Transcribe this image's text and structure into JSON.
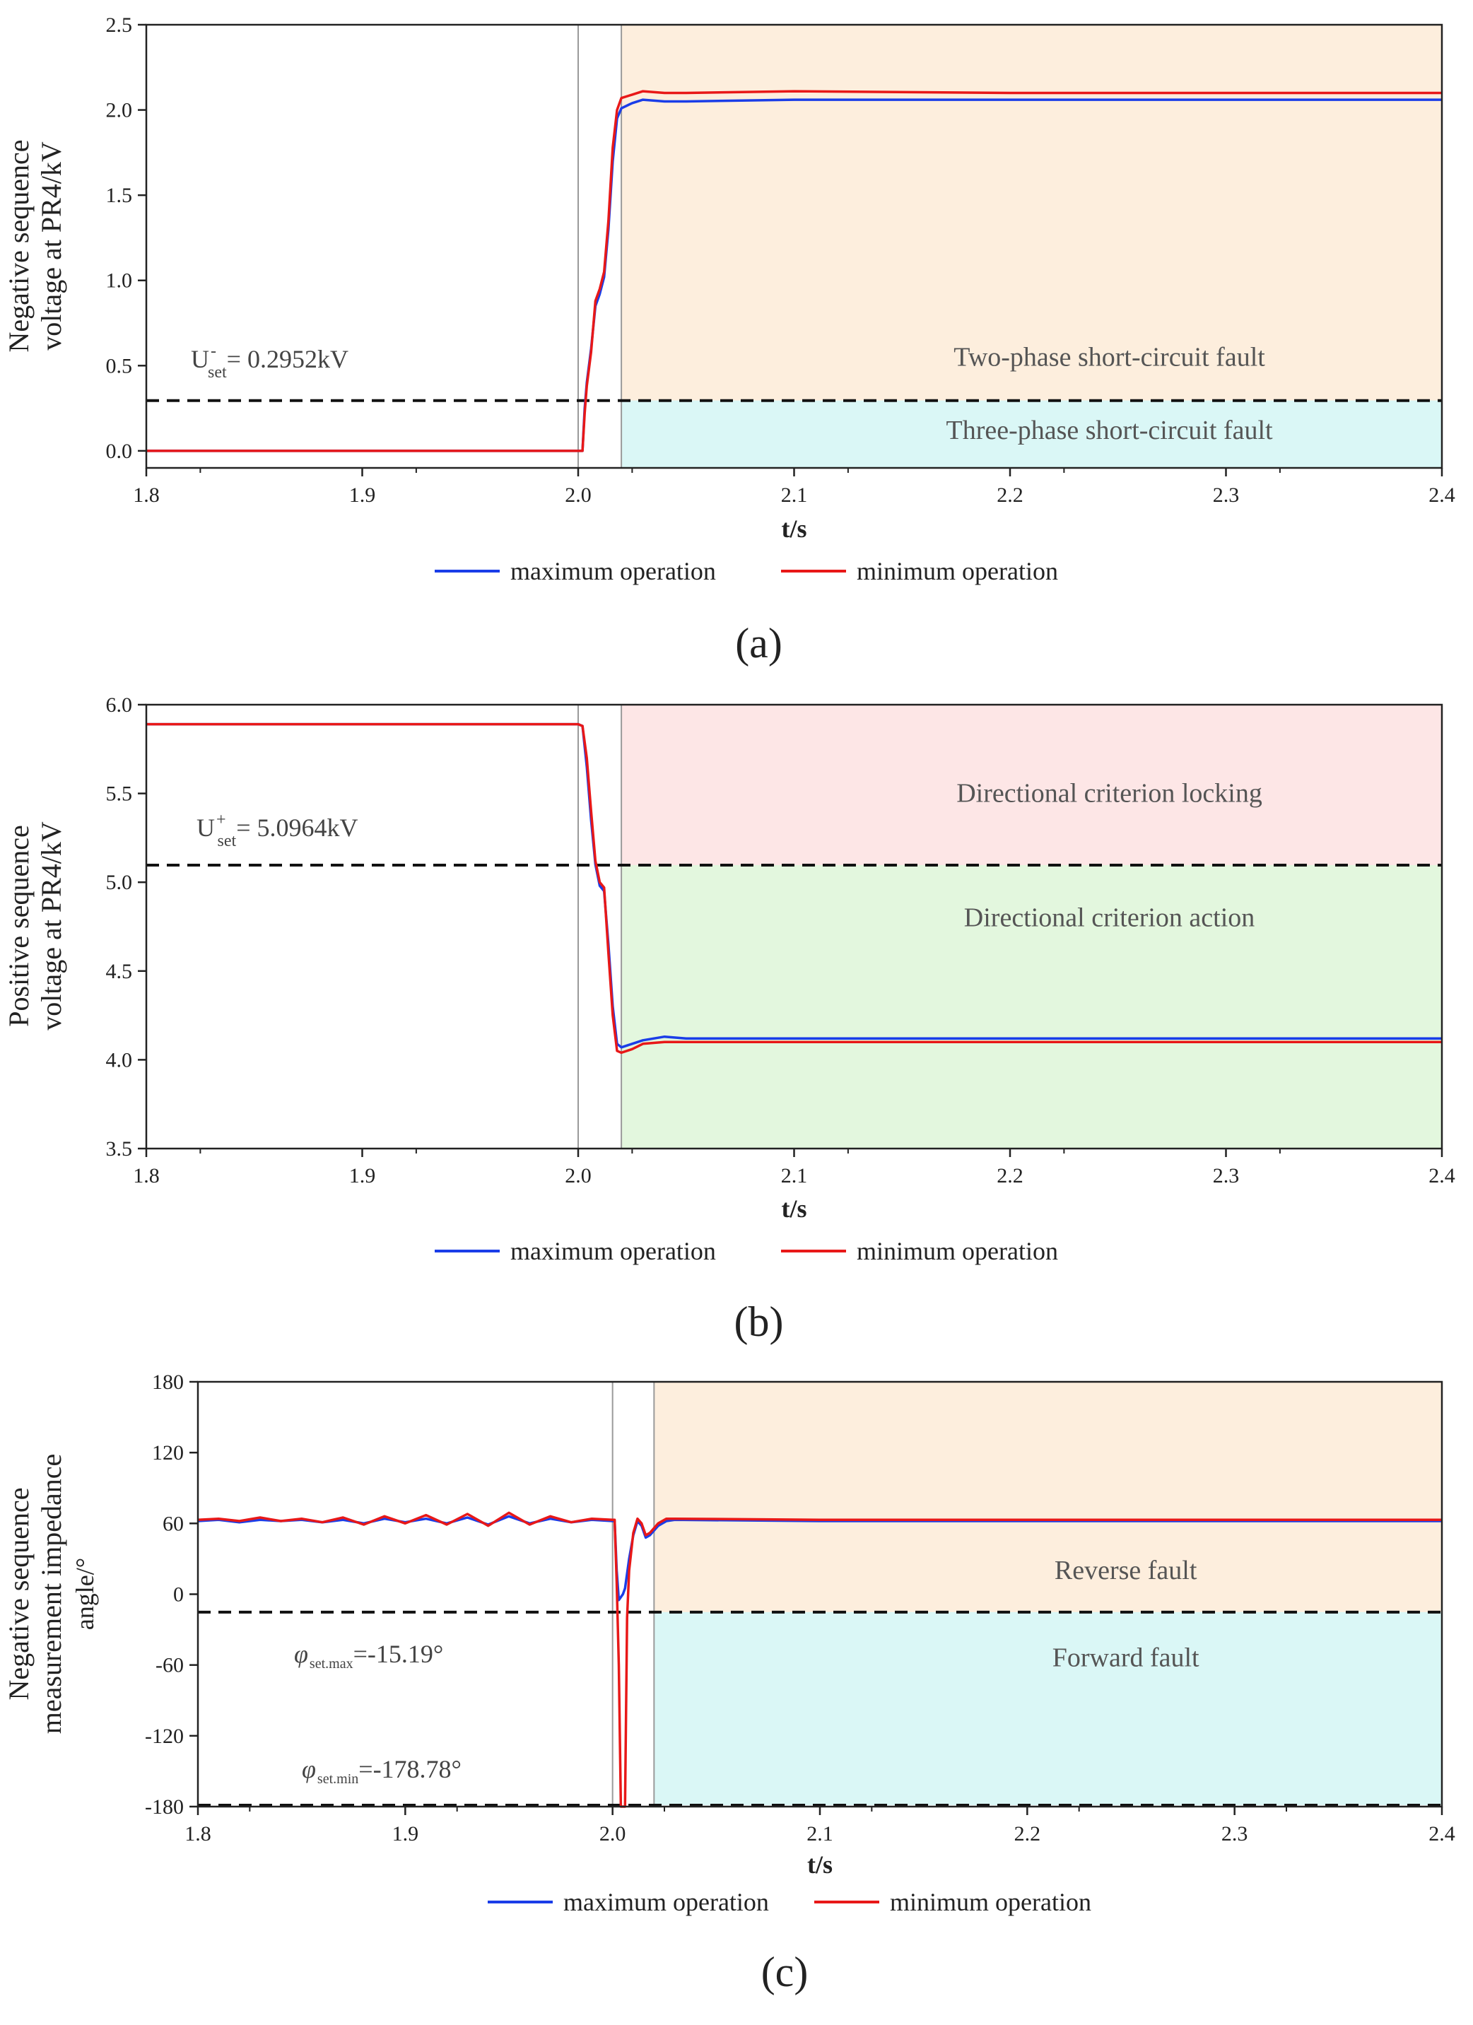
{
  "chart_data": [
    {
      "type": "line",
      "panel_label": "(a)",
      "xlabel": "t/s",
      "ylabel_lines": [
        "Negative sequence",
        "voltage at PR4/kV"
      ],
      "xlim": [
        1.8,
        2.4
      ],
      "ylim": [
        -0.1,
        2.5
      ],
      "xticks": [
        1.8,
        1.9,
        2.0,
        2.1,
        2.2,
        2.3,
        2.4
      ],
      "xtick_labels": [
        "1.8",
        "1.9",
        "2.0",
        "2.1",
        "2.2",
        "2.3",
        "2.4"
      ],
      "yticks": [
        0.0,
        0.5,
        1.0,
        1.5,
        2.0,
        2.5
      ],
      "ytick_labels": [
        "0.0",
        "0.5",
        "1.0",
        "1.5",
        "2.0",
        "2.5"
      ],
      "fault_start": 2.0,
      "shade_start": 2.02,
      "threshold": 0.2952,
      "threshold_label": {
        "main": "U",
        "sup": "-",
        "sub": "set",
        "text": "= 0.2952kV"
      },
      "regions": [
        {
          "label": "Two-phase short-circuit fault",
          "from": 0.2952,
          "to": 2.5,
          "color": "#fdeedd",
          "text_y": 0.55
        },
        {
          "label": "Three-phase short-circuit fault",
          "from": -0.1,
          "to": 0.2952,
          "color": "#daf7f6",
          "text_y": 0.12
        }
      ],
      "legend": [
        "maximum operation",
        "minimum operation"
      ],
      "series": [
        {
          "name": "maximum operation",
          "color": "#1a3de8",
          "points": [
            [
              1.8,
              0.0
            ],
            [
              2.0,
              0.0
            ],
            [
              2.002,
              0.0
            ],
            [
              2.003,
              0.25
            ],
            [
              2.004,
              0.4
            ],
            [
              2.006,
              0.6
            ],
            [
              2.008,
              0.85
            ],
            [
              2.01,
              0.92
            ],
            [
              2.012,
              1.02
            ],
            [
              2.014,
              1.3
            ],
            [
              2.016,
              1.7
            ],
            [
              2.018,
              1.95
            ],
            [
              2.02,
              2.01
            ],
            [
              2.025,
              2.04
            ],
            [
              2.03,
              2.06
            ],
            [
              2.04,
              2.05
            ],
            [
              2.05,
              2.05
            ],
            [
              2.1,
              2.06
            ],
            [
              2.2,
              2.06
            ],
            [
              2.3,
              2.06
            ],
            [
              2.4,
              2.06
            ]
          ]
        },
        {
          "name": "minimum operation",
          "color": "#e81818",
          "points": [
            [
              1.8,
              0.0
            ],
            [
              2.0,
              0.0
            ],
            [
              2.002,
              0.0
            ],
            [
              2.003,
              0.22
            ],
            [
              2.004,
              0.38
            ],
            [
              2.006,
              0.58
            ],
            [
              2.008,
              0.88
            ],
            [
              2.01,
              0.95
            ],
            [
              2.012,
              1.05
            ],
            [
              2.014,
              1.35
            ],
            [
              2.016,
              1.78
            ],
            [
              2.018,
              2.0
            ],
            [
              2.02,
              2.07
            ],
            [
              2.025,
              2.09
            ],
            [
              2.03,
              2.11
            ],
            [
              2.04,
              2.1
            ],
            [
              2.05,
              2.1
            ],
            [
              2.1,
              2.11
            ],
            [
              2.2,
              2.1
            ],
            [
              2.3,
              2.1
            ],
            [
              2.4,
              2.1
            ]
          ]
        }
      ]
    },
    {
      "type": "line",
      "panel_label": "(b)",
      "xlabel": "t/s",
      "ylabel_lines": [
        "Positive sequence",
        "voltage at PR4/kV"
      ],
      "xlim": [
        1.8,
        2.4
      ],
      "ylim": [
        3.5,
        6.0
      ],
      "xticks": [
        1.8,
        1.9,
        2.0,
        2.1,
        2.2,
        2.3,
        2.4
      ],
      "xtick_labels": [
        "1.8",
        "1.9",
        "2.0",
        "2.1",
        "2.2",
        "2.3",
        "2.4"
      ],
      "yticks": [
        3.5,
        4.0,
        4.5,
        5.0,
        5.5,
        6.0
      ],
      "ytick_labels": [
        "3.5",
        "4.0",
        "4.5",
        "5.0",
        "5.5",
        "6.0"
      ],
      "fault_start": 2.0,
      "shade_start": 2.02,
      "threshold": 5.0964,
      "threshold_label": {
        "main": "U",
        "sup": "+",
        "sub": "set",
        "text": "= 5.0964kV"
      },
      "regions": [
        {
          "label": "Directional criterion locking",
          "from": 5.0964,
          "to": 6.0,
          "color": "#fde6e6",
          "text_y": 5.5
        },
        {
          "label": "Directional criterion action",
          "from": 3.5,
          "to": 5.0964,
          "color": "#e3f7de",
          "text_y": 4.8
        }
      ],
      "legend": [
        "maximum operation",
        "minimum operation"
      ],
      "series": [
        {
          "name": "maximum operation",
          "color": "#1a3de8",
          "points": [
            [
              1.8,
              5.89
            ],
            [
              2.0,
              5.89
            ],
            [
              2.002,
              5.88
            ],
            [
              2.004,
              5.65
            ],
            [
              2.006,
              5.35
            ],
            [
              2.008,
              5.1
            ],
            [
              2.01,
              4.98
            ],
            [
              2.012,
              4.95
            ],
            [
              2.014,
              4.65
            ],
            [
              2.016,
              4.3
            ],
            [
              2.018,
              4.09
            ],
            [
              2.02,
              4.07
            ],
            [
              2.025,
              4.09
            ],
            [
              2.03,
              4.11
            ],
            [
              2.04,
              4.13
            ],
            [
              2.05,
              4.12
            ],
            [
              2.1,
              4.12
            ],
            [
              2.2,
              4.12
            ],
            [
              2.3,
              4.12
            ],
            [
              2.4,
              4.12
            ]
          ]
        },
        {
          "name": "minimum operation",
          "color": "#e81818",
          "points": [
            [
              1.8,
              5.89
            ],
            [
              2.0,
              5.89
            ],
            [
              2.002,
              5.88
            ],
            [
              2.004,
              5.7
            ],
            [
              2.006,
              5.4
            ],
            [
              2.008,
              5.12
            ],
            [
              2.01,
              5.0
            ],
            [
              2.012,
              4.97
            ],
            [
              2.014,
              4.6
            ],
            [
              2.016,
              4.25
            ],
            [
              2.018,
              4.05
            ],
            [
              2.02,
              4.04
            ],
            [
              2.025,
              4.06
            ],
            [
              2.03,
              4.09
            ],
            [
              2.04,
              4.1
            ],
            [
              2.05,
              4.1
            ],
            [
              2.1,
              4.1
            ],
            [
              2.2,
              4.1
            ],
            [
              2.3,
              4.1
            ],
            [
              2.4,
              4.1
            ]
          ]
        }
      ]
    },
    {
      "type": "line",
      "panel_label": "(c)",
      "xlabel": "t/s",
      "ylabel_lines": [
        "Negative sequence",
        "measurement impedance",
        "angle/°"
      ],
      "xlim": [
        1.8,
        2.4
      ],
      "ylim": [
        -180,
        180
      ],
      "xticks": [
        1.8,
        1.9,
        2.0,
        2.1,
        2.2,
        2.3,
        2.4
      ],
      "xtick_labels": [
        "1.8",
        "1.9",
        "2.0",
        "2.1",
        "2.2",
        "2.3",
        "2.4"
      ],
      "yticks": [
        -180,
        -120,
        -60,
        0,
        60,
        120,
        180
      ],
      "ytick_labels": [
        "-180",
        "-120",
        "-60",
        "0",
        "60",
        "120",
        "180"
      ],
      "fault_start": 2.0,
      "shade_start": 2.02,
      "threshold": -15.19,
      "threshold2": -178.78,
      "threshold_label": {
        "main": "φ",
        "sub": "set.max",
        "text": "=-15.19°"
      },
      "threshold2_label": {
        "main": "φ",
        "sub": "set.min",
        "text": "=-178.78°"
      },
      "regions": [
        {
          "label": "Reverse fault",
          "from": -15.19,
          "to": 180,
          "color": "#fdeedd",
          "text_y": 20
        },
        {
          "label": "Forward fault",
          "from": -178.78,
          "to": -15.19,
          "color": "#daf7f6",
          "text_y": -54
        }
      ],
      "legend": [
        "maximum operation",
        "minimum operation"
      ],
      "series": [
        {
          "name": "maximum operation",
          "color": "#1a3de8",
          "points": [
            [
              1.8,
              62
            ],
            [
              1.81,
              63
            ],
            [
              1.82,
              61
            ],
            [
              1.83,
              63
            ],
            [
              1.84,
              62
            ],
            [
              1.85,
              63
            ],
            [
              1.86,
              61
            ],
            [
              1.87,
              63
            ],
            [
              1.88,
              60
            ],
            [
              1.89,
              64
            ],
            [
              1.9,
              61
            ],
            [
              1.91,
              64
            ],
            [
              1.92,
              60
            ],
            [
              1.93,
              65
            ],
            [
              1.94,
              59
            ],
            [
              1.95,
              66
            ],
            [
              1.96,
              60
            ],
            [
              1.97,
              64
            ],
            [
              1.98,
              61
            ],
            [
              1.99,
              63
            ],
            [
              2.0,
              62
            ],
            [
              2.001,
              62
            ],
            [
              2.002,
              20
            ],
            [
              2.003,
              -5
            ],
            [
              2.005,
              0
            ],
            [
              2.006,
              5
            ],
            [
              2.008,
              30
            ],
            [
              2.01,
              50
            ],
            [
              2.012,
              62
            ],
            [
              2.014,
              58
            ],
            [
              2.016,
              48
            ],
            [
              2.018,
              50
            ],
            [
              2.022,
              58
            ],
            [
              2.026,
              62
            ],
            [
              2.03,
              63
            ],
            [
              2.1,
              62
            ],
            [
              2.2,
              62
            ],
            [
              2.3,
              62
            ],
            [
              2.4,
              62
            ]
          ]
        },
        {
          "name": "minimum operation",
          "color": "#e81818",
          "points": [
            [
              1.8,
              63
            ],
            [
              1.81,
              64
            ],
            [
              1.82,
              62
            ],
            [
              1.83,
              65
            ],
            [
              1.84,
              62
            ],
            [
              1.85,
              64
            ],
            [
              1.86,
              61
            ],
            [
              1.87,
              65
            ],
            [
              1.88,
              59
            ],
            [
              1.89,
              66
            ],
            [
              1.9,
              60
            ],
            [
              1.91,
              67
            ],
            [
              1.92,
              59
            ],
            [
              1.93,
              68
            ],
            [
              1.94,
              58
            ],
            [
              1.95,
              69
            ],
            [
              1.96,
              59
            ],
            [
              1.97,
              66
            ],
            [
              1.98,
              61
            ],
            [
              1.99,
              64
            ],
            [
              2.0,
              63
            ],
            [
              2.001,
              63
            ],
            [
              2.002,
              10
            ],
            [
              2.003,
              -60
            ],
            [
              2.004,
              -180
            ],
            [
              2.006,
              -180
            ],
            [
              2.007,
              -20
            ],
            [
              2.008,
              20
            ],
            [
              2.01,
              52
            ],
            [
              2.012,
              64
            ],
            [
              2.014,
              60
            ],
            [
              2.016,
              50
            ],
            [
              2.018,
              52
            ],
            [
              2.022,
              60
            ],
            [
              2.026,
              64
            ],
            [
              2.03,
              64
            ],
            [
              2.1,
              63
            ],
            [
              2.2,
              63
            ],
            [
              2.3,
              63
            ],
            [
              2.4,
              63
            ]
          ]
        }
      ]
    }
  ]
}
